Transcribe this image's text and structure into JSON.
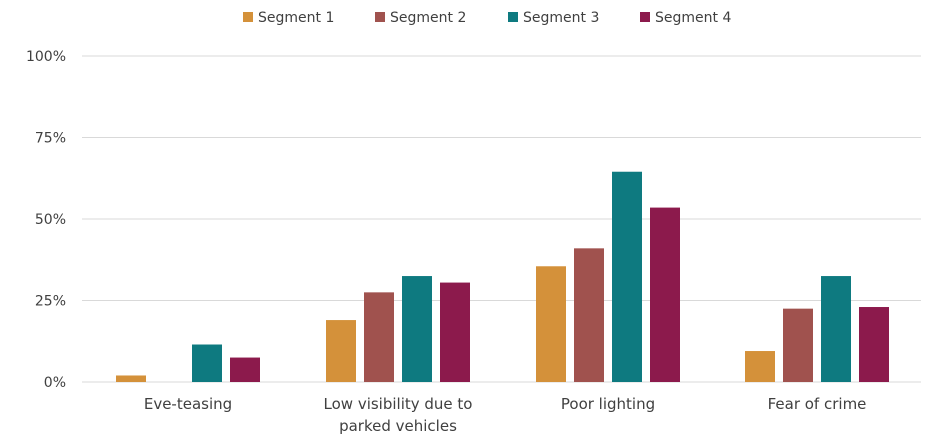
{
  "chart_data": {
    "type": "bar",
    "categories": [
      [
        "Eve-teasing"
      ],
      [
        "Low visibility due to",
        "parked vehicles"
      ],
      [
        "Poor lighting"
      ],
      [
        "Fear of crime"
      ]
    ],
    "series": [
      {
        "name": "Segment 1",
        "color": "#D4913A",
        "values": [
          2,
          19,
          35.5,
          9.5
        ]
      },
      {
        "name": "Segment 2",
        "color": "#A0524E",
        "values": [
          0,
          27.5,
          41,
          22.5
        ]
      },
      {
        "name": "Segment 3",
        "color": "#0E7A80",
        "values": [
          11.5,
          32.5,
          64.5,
          32.5
        ]
      },
      {
        "name": "Segment 4",
        "color": "#8C1A4C",
        "values": [
          7.5,
          30.5,
          53.5,
          23
        ]
      }
    ],
    "yticks": [
      0,
      25,
      50,
      75,
      100
    ],
    "ytick_labels": [
      "0%",
      "25%",
      "50%",
      "75%",
      "100%"
    ],
    "ylim": [
      0,
      100
    ],
    "grid": true,
    "legend_position": "top-center",
    "gridline_color": "#D9D9D9"
  }
}
